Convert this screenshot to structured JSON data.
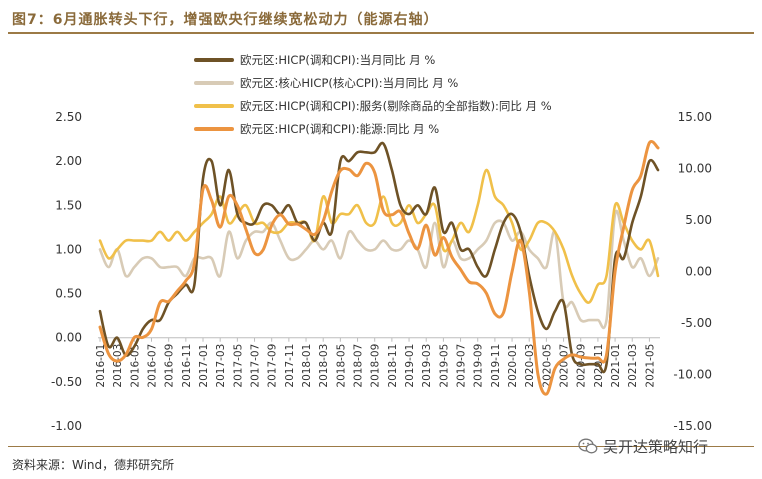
{
  "figure": {
    "title": "图7：6月通胀转头下行，增强欧央行继续宽松动力（能源右轴）",
    "source": "资料来源：Wind，德邦研究所",
    "watermark": "吴开达策略知行"
  },
  "chart_data": {
    "type": "line",
    "title": "图7：6月通胀转头下行，增强欧央行继续宽松动力（能源右轴）",
    "x_tick_labels": [
      "2016-01",
      "2016-03",
      "2016-05",
      "2016-07",
      "2016-09",
      "2016-11",
      "2017-01",
      "2017-03",
      "2017-05",
      "2017-07",
      "2017-09",
      "2017-11",
      "2018-01",
      "2018-03",
      "2018-05",
      "2018-07",
      "2018-09",
      "2018-11",
      "2019-01",
      "2019-03",
      "2019-05",
      "2019-07",
      "2019-09",
      "2019-11",
      "2020-01",
      "2020-03",
      "2020-05",
      "2020-07",
      "2020-09",
      "2020-11",
      "2021-01",
      "2021-03",
      "2021-05"
    ],
    "x_start": "2016-01",
    "x_count": 66,
    "y_left": {
      "min": -1.0,
      "max": 2.5,
      "ticks": [
        -1.0,
        -0.5,
        0.0,
        0.5,
        1.0,
        1.5,
        2.0,
        2.5
      ],
      "tick_labels": [
        "-1.00",
        "-0.50",
        "0.00",
        "0.50",
        "1.00",
        "1.50",
        "2.00",
        "2.50"
      ]
    },
    "y_right": {
      "min": -15,
      "max": 15,
      "ticks": [
        -15,
        -10,
        -5,
        0,
        5,
        10,
        15
      ],
      "tick_labels": [
        "-15.00",
        "-10.00",
        "-5.00",
        "0.00",
        "5.00",
        "10.00",
        "15.00"
      ]
    },
    "series": [
      {
        "name": "欧元区:HICP(调和CPI):当月同比 月 %",
        "axis": "left",
        "color": "#6e5226",
        "values": [
          0.3,
          -0.1,
          0.0,
          -0.2,
          -0.1,
          0.1,
          0.2,
          0.2,
          0.4,
          0.5,
          0.6,
          0.6,
          1.8,
          2.0,
          1.5,
          1.9,
          1.4,
          1.3,
          1.3,
          1.5,
          1.5,
          1.4,
          1.5,
          1.3,
          1.3,
          1.1,
          1.3,
          1.2,
          2.0,
          2.0,
          2.1,
          2.1,
          2.1,
          2.2,
          1.9,
          1.5,
          1.4,
          1.5,
          1.4,
          1.7,
          1.2,
          1.3,
          1.0,
          1.0,
          0.8,
          0.7,
          1.0,
          1.3,
          1.4,
          1.2,
          0.7,
          0.3,
          0.1,
          0.3,
          0.4,
          -0.2,
          -0.3,
          -0.3,
          -0.3,
          -0.3,
          0.9,
          0.9,
          1.3,
          1.6,
          2.0,
          1.9
        ]
      },
      {
        "name": "欧元区:核心HICP(核心CPI):当月同比 月 %",
        "axis": "left",
        "color": "#d8cbb6",
        "values": [
          1.0,
          0.8,
          1.0,
          0.7,
          0.8,
          0.9,
          0.9,
          0.8,
          0.8,
          0.8,
          0.7,
          0.9,
          0.9,
          0.9,
          0.7,
          1.2,
          0.9,
          1.1,
          1.2,
          1.2,
          1.3,
          1.1,
          0.9,
          0.9,
          1.0,
          1.1,
          1.0,
          1.1,
          0.9,
          1.2,
          1.1,
          1.0,
          1.0,
          1.1,
          1.0,
          1.0,
          1.1,
          1.0,
          0.8,
          1.3,
          0.8,
          1.1,
          0.9,
          0.9,
          1.0,
          1.1,
          1.3,
          1.3,
          1.1,
          1.2,
          1.0,
          0.9,
          0.8,
          1.2,
          0.4,
          0.4,
          0.2,
          0.2,
          0.2,
          0.2,
          1.4,
          1.1,
          0.8,
          0.9,
          0.7,
          0.9
        ]
      },
      {
        "name": "欧元区:HICP(调和CPI):服务(剔除商品的全部指数):同比 月 %",
        "axis": "left",
        "color": "#f0c04a",
        "values": [
          1.1,
          0.9,
          1.0,
          1.1,
          1.1,
          1.1,
          1.1,
          1.2,
          1.1,
          1.2,
          1.1,
          1.2,
          1.3,
          1.4,
          1.6,
          1.3,
          1.4,
          1.5,
          1.3,
          1.3,
          1.2,
          1.2,
          1.3,
          1.3,
          1.3,
          1.1,
          1.6,
          1.3,
          1.4,
          1.4,
          1.5,
          1.3,
          1.3,
          1.6,
          1.3,
          1.3,
          1.5,
          1.3,
          1.4,
          1.5,
          1.0,
          1.1,
          1.3,
          1.2,
          1.5,
          1.9,
          1.6,
          1.5,
          1.3,
          1.0,
          1.1,
          1.3,
          1.3,
          1.2,
          1.0,
          0.7,
          0.5,
          0.4,
          0.6,
          0.7,
          1.5,
          1.3,
          1.1,
          1.0,
          1.1,
          0.7
        ]
      },
      {
        "name": "欧元区:HICP(调和CPI):能源:同比 月 %",
        "axis": "right",
        "color": "#ec9440",
        "values": [
          -5.4,
          -8.0,
          -8.7,
          -8.1,
          -6.4,
          -6.4,
          -5.6,
          -3.0,
          -2.9,
          -1.9,
          -0.9,
          0.8,
          8.0,
          6.9,
          4.3,
          7.3,
          6.4,
          4.1,
          1.8,
          2.1,
          4.5,
          5.5,
          4.6,
          4.6,
          4.1,
          3.6,
          4.9,
          7.8,
          9.8,
          9.9,
          9.3,
          10.5,
          9.6,
          5.9,
          5.5,
          5.8,
          3.7,
          2.2,
          4.5,
          1.6,
          3.3,
          1.4,
          0.2,
          -1.0,
          -1.2,
          -2.1,
          -4.1,
          -4.0,
          0.0,
          3.0,
          -1.9,
          -9.9,
          -11.9,
          -9.4,
          -8.5,
          -8.1,
          -8.3,
          -8.4,
          -8.4,
          -8.1,
          0.0,
          4.3,
          7.9,
          9.3,
          12.5,
          12.0
        ]
      }
    ]
  }
}
